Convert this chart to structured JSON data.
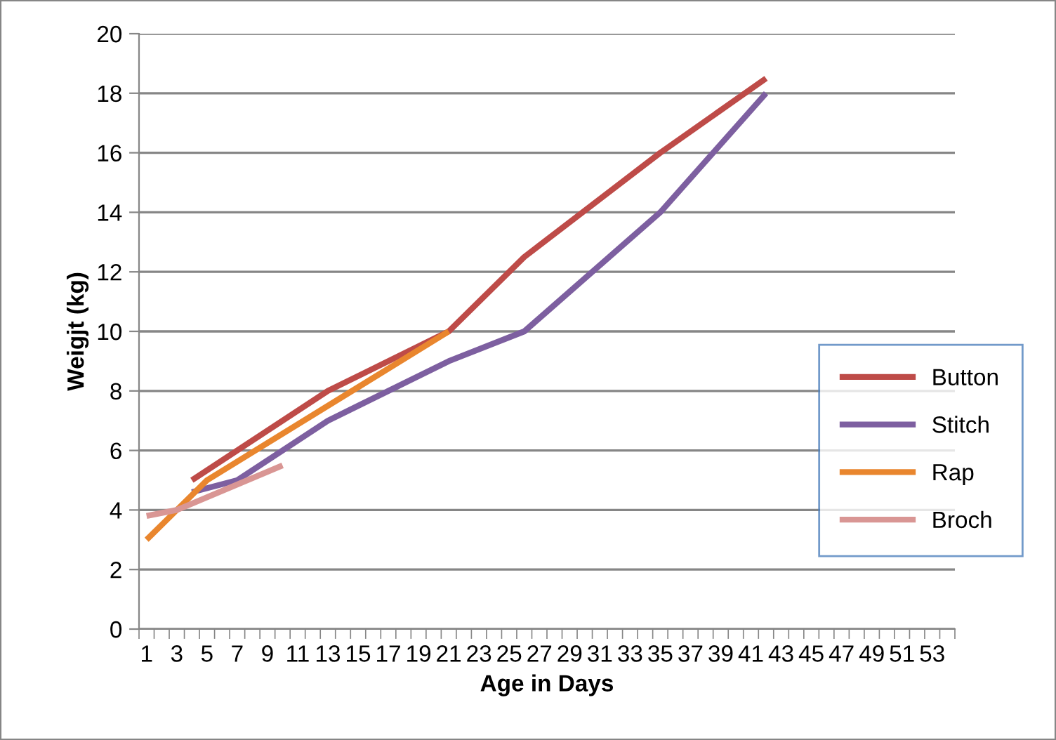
{
  "chart_data": {
    "type": "line",
    "xlabel": "Age in Days",
    "ylabel": "Weigjt (kg)",
    "categories": [
      "1",
      null,
      "3",
      null,
      "5",
      null,
      "7",
      null,
      "9",
      null,
      "11",
      null,
      "13",
      null,
      "15",
      null,
      "17",
      null,
      "19",
      null,
      "21",
      null,
      "23",
      null,
      "25",
      null,
      "27",
      null,
      "29",
      null,
      "31",
      null,
      "33",
      null,
      "35",
      null,
      "37",
      null,
      "39",
      null,
      "41",
      null,
      "43",
      null,
      "45",
      null,
      "47",
      null,
      "49",
      null,
      "51",
      null,
      "53",
      null
    ],
    "series": [
      {
        "name": "Button",
        "color": "#be4b48",
        "values": [
          null,
          null,
          null,
          5,
          null,
          null,
          null,
          null,
          null,
          null,
          null,
          null,
          8,
          null,
          null,
          null,
          null,
          null,
          null,
          null,
          10,
          null,
          null,
          null,
          null,
          12.5,
          null,
          null,
          null,
          null,
          null,
          null,
          null,
          null,
          16,
          null,
          null,
          null,
          null,
          null,
          null,
          18.5,
          null,
          null,
          null,
          null,
          null,
          null,
          null,
          null,
          null,
          null,
          null,
          null
        ]
      },
      {
        "name": "Stitch",
        "color": "#7d5fa0",
        "values": [
          null,
          null,
          null,
          4.6,
          null,
          null,
          5,
          null,
          null,
          null,
          null,
          null,
          7,
          null,
          null,
          null,
          null,
          null,
          null,
          null,
          9,
          null,
          null,
          null,
          null,
          10,
          null,
          null,
          null,
          null,
          null,
          null,
          null,
          null,
          14,
          null,
          null,
          null,
          null,
          null,
          null,
          18,
          null,
          null,
          null,
          null,
          null,
          null,
          null,
          null,
          null,
          null,
          null,
          null
        ]
      },
      {
        "name": "Rap",
        "color": "#e9862e",
        "values": [
          3,
          null,
          null,
          null,
          5,
          null,
          null,
          null,
          null,
          null,
          null,
          null,
          null,
          null,
          null,
          null,
          null,
          null,
          null,
          null,
          10,
          null,
          null,
          null,
          null,
          null,
          null,
          null,
          null,
          null,
          null,
          null,
          null,
          null,
          null,
          null,
          null,
          null,
          null,
          null,
          null,
          null,
          null,
          null,
          null,
          null,
          null,
          null,
          null,
          null,
          null,
          null,
          null,
          null
        ]
      },
      {
        "name": "Broch",
        "color": "#d99694",
        "values": [
          3.8,
          null,
          4,
          null,
          null,
          null,
          null,
          null,
          null,
          5.5,
          null,
          null,
          null,
          null,
          null,
          null,
          null,
          null,
          null,
          null,
          null,
          null,
          null,
          null,
          null,
          null,
          null,
          null,
          null,
          null,
          null,
          null,
          null,
          null,
          null,
          null,
          null,
          null,
          null,
          null,
          null,
          null,
          null,
          null,
          null,
          null,
          null,
          null,
          null,
          null,
          null,
          null,
          null,
          null
        ]
      }
    ],
    "ylim": [
      0,
      20
    ],
    "yticks": [
      0,
      2,
      4,
      6,
      8,
      10,
      12,
      14,
      16,
      18,
      20
    ],
    "grid": "y",
    "legend": "right",
    "marker": "none",
    "line_style": "solid"
  }
}
